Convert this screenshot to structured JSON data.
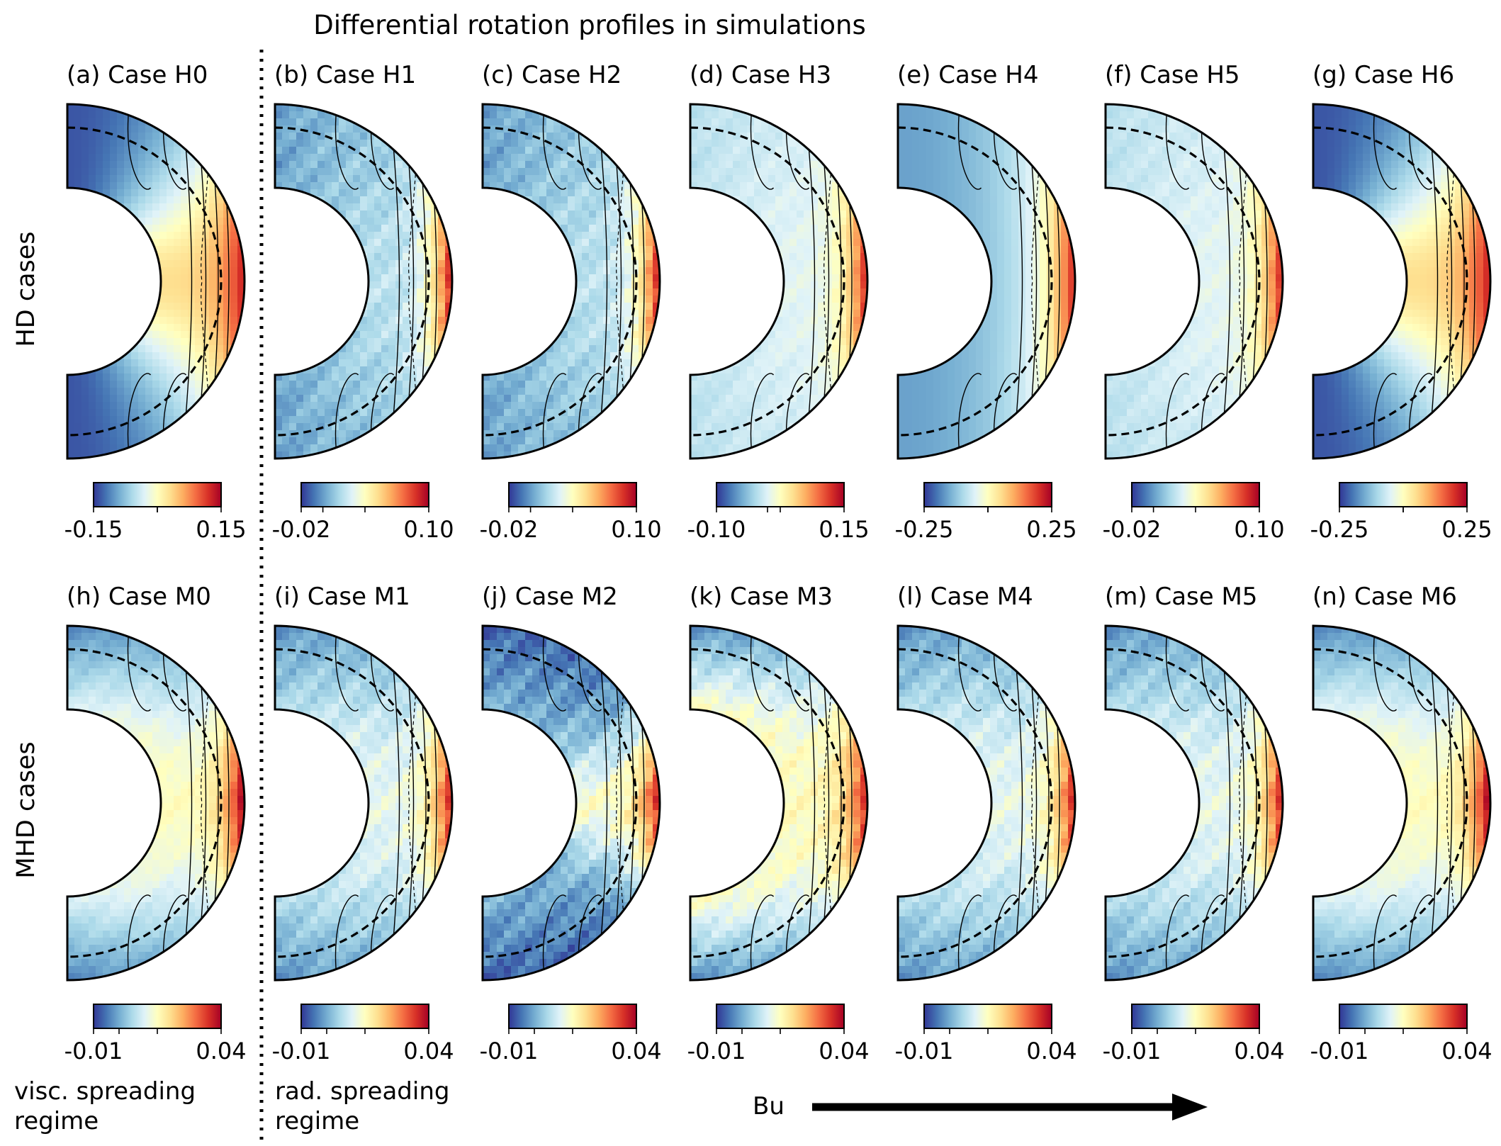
{
  "figure": {
    "title": "Differential rotation profiles in simulations",
    "row_labels": [
      "HD cases",
      "MHD cases"
    ],
    "regime_labels": {
      "viscous": [
        "visc. spreading",
        "regime"
      ],
      "radiative": [
        "rad. spreading",
        "regime"
      ]
    },
    "arrow_label": "Bu"
  },
  "colors": {
    "colormap": [
      "#313695",
      "#4575b4",
      "#74add1",
      "#abd9e9",
      "#e0f3f8",
      "#ffffbf",
      "#fee090",
      "#fdae61",
      "#f46d43",
      "#d73027",
      "#a50026"
    ],
    "contour": "#000000"
  },
  "chart_data": {
    "type": "heatmap",
    "description_field": "meridional slices of differential rotation; colorbar ranges per panel",
    "panels": [
      {
        "label": "(a) Case H0",
        "vmin": -0.15,
        "vmax": 0.15,
        "ticks": [
          "-0.15",
          "0.15"
        ],
        "style": "hd_smooth",
        "pivot": 0.5
      },
      {
        "label": "(b) Case H1",
        "vmin": -0.02,
        "vmax": 0.1,
        "ticks": [
          "-0.02",
          "0.10"
        ],
        "style": "hd_noisy_dark",
        "pivot": 0.17
      },
      {
        "label": "(c) Case H2",
        "vmin": -0.02,
        "vmax": 0.1,
        "ticks": [
          "-0.02",
          "0.10"
        ],
        "style": "hd_noisy_dark",
        "pivot": 0.17
      },
      {
        "label": "(d) Case H3",
        "vmin": -0.1,
        "vmax": 0.15,
        "ticks": [
          "-0.10",
          "0.15"
        ],
        "style": "hd_light",
        "pivot": 0.4
      },
      {
        "label": "(e) Case H4",
        "vmin": -0.25,
        "vmax": 0.25,
        "ticks": [
          "-0.25",
          "0.25"
        ],
        "style": "hd_cylinders",
        "pivot": 0.5
      },
      {
        "label": "(f) Case H5",
        "vmin": -0.02,
        "vmax": 0.1,
        "ticks": [
          "-0.02",
          "0.10"
        ],
        "style": "hd_light",
        "pivot": 0.17
      },
      {
        "label": "(g) Case H6",
        "vmin": -0.25,
        "vmax": 0.25,
        "ticks": [
          "-0.25",
          "0.25"
        ],
        "style": "hd_smooth",
        "pivot": 0.5
      },
      {
        "label": "(h) Case M0",
        "vmin": -0.01,
        "vmax": 0.04,
        "ticks": [
          "-0.01",
          "0.04"
        ],
        "style": "mhd_light",
        "pivot": 0.2
      },
      {
        "label": "(i) Case M1",
        "vmin": -0.01,
        "vmax": 0.04,
        "ticks": [
          "-0.01",
          "0.04"
        ],
        "style": "mhd_mid",
        "pivot": 0.2
      },
      {
        "label": "(j) Case M2",
        "vmin": -0.01,
        "vmax": 0.04,
        "ticks": [
          "-0.01",
          "0.04"
        ],
        "style": "mhd_dark",
        "pivot": 0.2
      },
      {
        "label": "(k) Case M3",
        "vmin": -0.01,
        "vmax": 0.04,
        "ticks": [
          "-0.01",
          "0.04"
        ],
        "style": "mhd_yellow",
        "pivot": 0.2
      },
      {
        "label": "(l) Case M4",
        "vmin": -0.01,
        "vmax": 0.04,
        "ticks": [
          "-0.01",
          "0.04"
        ],
        "style": "mhd_mid",
        "pivot": 0.2
      },
      {
        "label": "(m) Case M5",
        "vmin": -0.01,
        "vmax": 0.04,
        "ticks": [
          "-0.01",
          "0.04"
        ],
        "style": "mhd_mid",
        "pivot": 0.2
      },
      {
        "label": "(n) Case M6",
        "vmin": -0.01,
        "vmax": 0.04,
        "ticks": [
          "-0.01",
          "0.04"
        ],
        "style": "mhd_light",
        "pivot": 0.2
      }
    ]
  }
}
